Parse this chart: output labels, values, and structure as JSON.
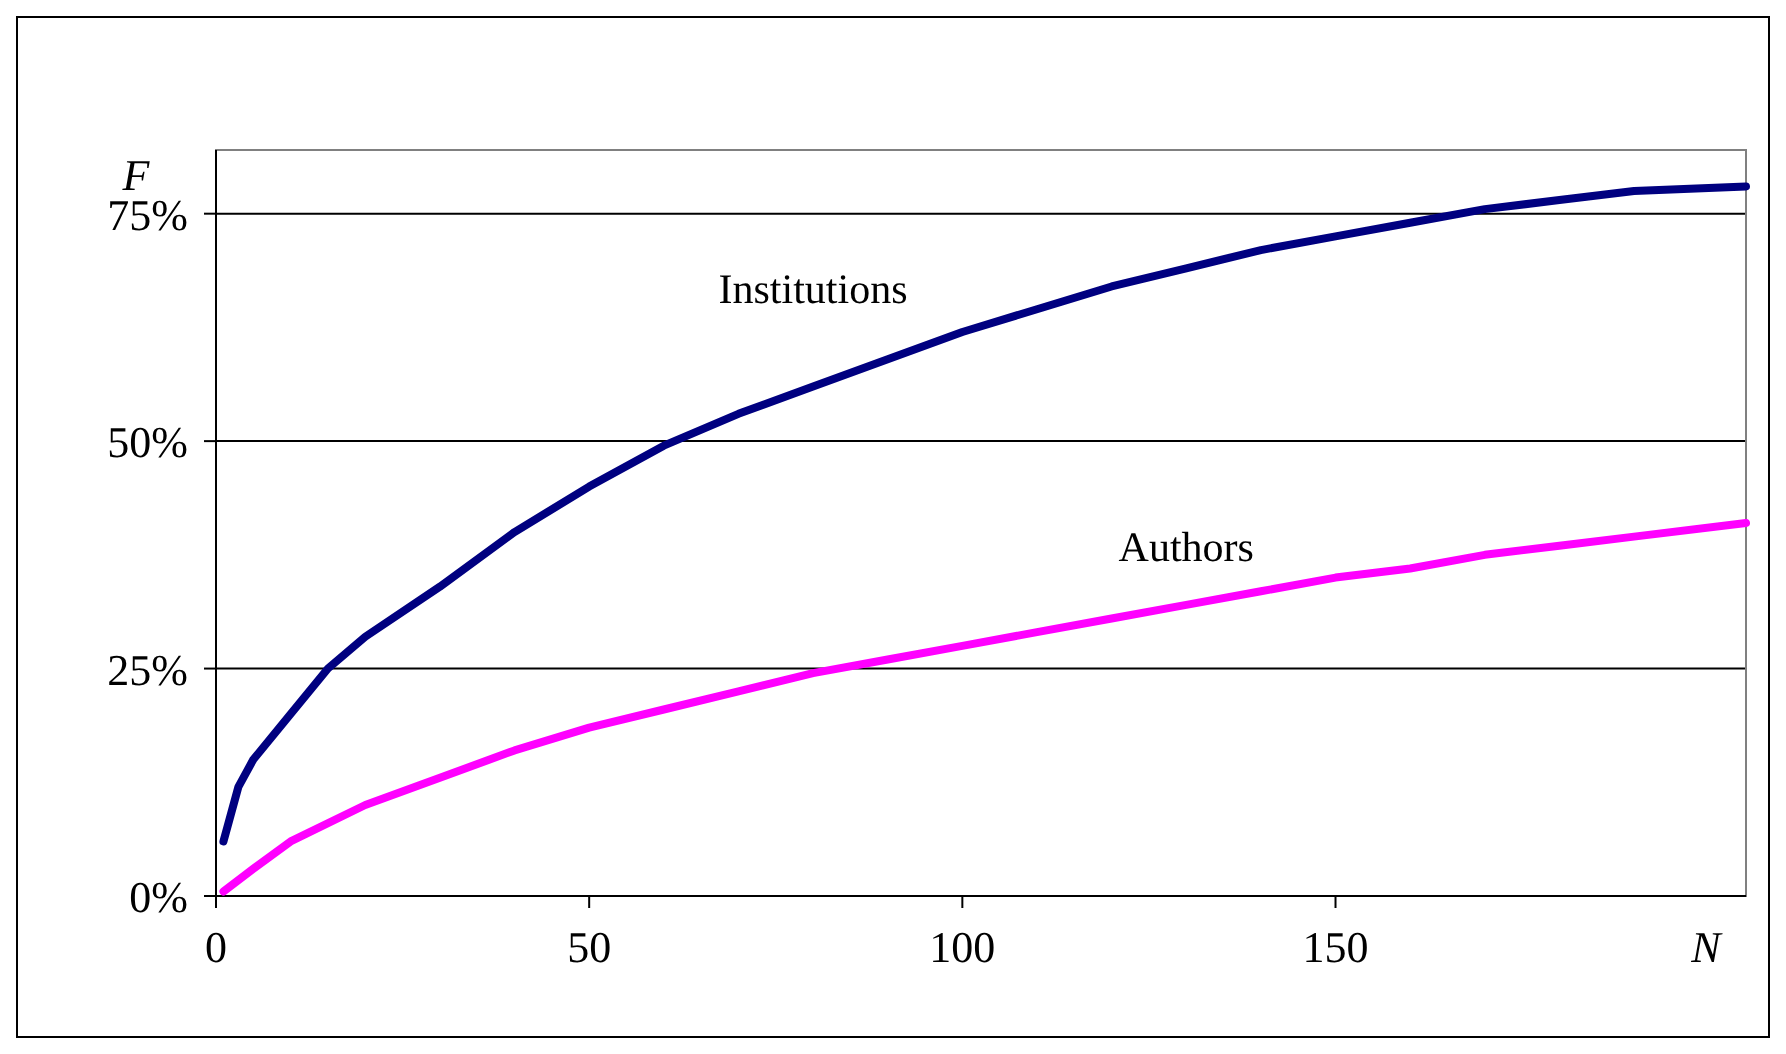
{
  "chart_data": {
    "type": "line",
    "xlabel": "N",
    "ylabel": "F",
    "xlim": [
      0,
      205
    ],
    "xticks": [
      0,
      50,
      100,
      150
    ],
    "ylim": [
      0,
      82
    ],
    "yticks": [
      {
        "value": 0,
        "label": "0%"
      },
      {
        "value": 25,
        "label": "25%"
      },
      {
        "value": 50,
        "label": "50%"
      },
      {
        "value": 75,
        "label": "75%"
      }
    ],
    "grid": "y",
    "legend": false,
    "marker": "none",
    "line_style": "solid",
    "series": [
      {
        "name": "Institutions",
        "color": "#000080",
        "x": [
          1,
          3,
          5,
          10,
          15,
          20,
          30,
          40,
          50,
          60,
          70,
          80,
          90,
          100,
          110,
          120,
          130,
          140,
          150,
          160,
          170,
          180,
          190,
          205
        ],
        "values": [
          6,
          12,
          15,
          20,
          25,
          28.5,
          34,
          40,
          45,
          49.5,
          53,
          56,
          59,
          62,
          64.5,
          67,
          69,
          71,
          72.5,
          74,
          75.5,
          76.5,
          77.5,
          78
        ]
      },
      {
        "name": "Authors",
        "color": "#ff00ff",
        "x": [
          1,
          5,
          10,
          20,
          30,
          40,
          50,
          60,
          70,
          80,
          90,
          100,
          110,
          120,
          130,
          140,
          150,
          160,
          170,
          180,
          190,
          205
        ],
        "values": [
          0.5,
          3,
          6,
          10,
          13,
          16,
          18.5,
          20.5,
          22.5,
          24.5,
          26,
          27.5,
          29,
          30.5,
          32,
          33.5,
          35,
          36,
          37.5,
          38.5,
          39.5,
          41
        ]
      }
    ]
  }
}
